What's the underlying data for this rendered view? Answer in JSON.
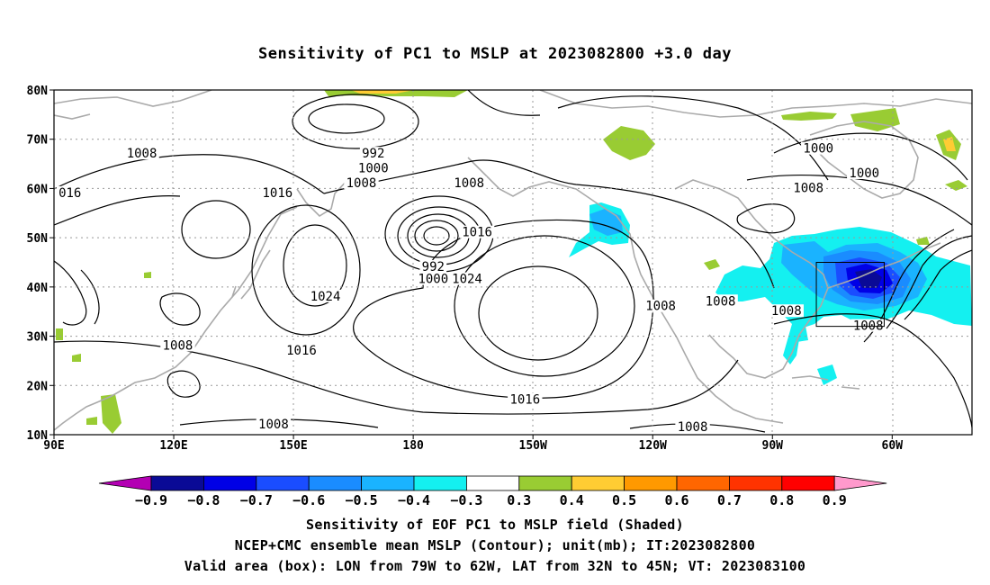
{
  "title": "Sensitivity of PC1 to MSLP at 2023082800 +3.0 day",
  "lat_labels": [
    "80N",
    "70N",
    "60N",
    "50N",
    "40N",
    "30N",
    "20N",
    "10N"
  ],
  "lon_labels": [
    "90E",
    "120E",
    "150E",
    "180",
    "150W",
    "120W",
    "90W",
    "60W"
  ],
  "contour_labels": [
    {
      "text": "1008",
      "lon": 112,
      "lat": 67
    },
    {
      "text": "992",
      "lon": 170,
      "lat": 67
    },
    {
      "text": "1000",
      "lon": 170,
      "lat": 64
    },
    {
      "text": "1008",
      "lon": 167,
      "lat": 61
    },
    {
      "text": "016",
      "lon": 94,
      "lat": 59
    },
    {
      "text": "1016",
      "lon": 146,
      "lat": 59
    },
    {
      "text": "1008",
      "lon": 194,
      "lat": 61
    },
    {
      "text": "1016",
      "lon": 196,
      "lat": 51
    },
    {
      "text": "992",
      "lon": 185,
      "lat": 44
    },
    {
      "text": "1000",
      "lon": 185,
      "lat": 41.5
    },
    {
      "text": "1024",
      "lon": 193.5,
      "lat": 41.5
    },
    {
      "text": "1024",
      "lon": 158,
      "lat": 38
    },
    {
      "text": "1008",
      "lon": 242,
      "lat": 36
    },
    {
      "text": "1008",
      "lon": 257,
      "lat": 37
    },
    {
      "text": "1008",
      "lon": 121,
      "lat": 28
    },
    {
      "text": "1016",
      "lon": 152,
      "lat": 27
    },
    {
      "text": "1016",
      "lon": 208,
      "lat": 17
    },
    {
      "text": "1008",
      "lon": 145,
      "lat": 12
    },
    {
      "text": "1008",
      "lon": 250,
      "lat": 11.5
    },
    {
      "text": "1000",
      "lon": 281.5,
      "lat": 68
    },
    {
      "text": "1000",
      "lon": 293,
      "lat": 63
    },
    {
      "text": "1008",
      "lon": 279,
      "lat": 60
    },
    {
      "text": "1008",
      "lon": 273.5,
      "lat": 35
    },
    {
      "text": "1008",
      "lon": 294,
      "lat": 32
    }
  ],
  "valid_box": {
    "lon_min": -79,
    "lon_max": -62,
    "lat_min": 32,
    "lat_max": 45
  },
  "colorbar": {
    "labels": [
      "−0.9",
      "−0.8",
      "−0.7",
      "−0.6",
      "−0.5",
      "−0.4",
      "−0.3",
      "0.3",
      "0.4",
      "0.5",
      "0.6",
      "0.7",
      "0.8",
      "0.9"
    ],
    "colors": [
      "#b300b3",
      "#0a0a96",
      "#0000e6",
      "#1a4dff",
      "#1a8cff",
      "#1ab3ff",
      "#14f0f0",
      "#ffffff",
      "#99cc33",
      "#ffcc33",
      "#ff9900",
      "#ff6600",
      "#ff3300",
      "#ff0000",
      "#ff99cc"
    ]
  },
  "caption": {
    "line1": "Sensitivity of EOF PC1 to MSLP field (Shaded)",
    "line2": "NCEP+CMC ensemble mean MSLP (Contour); unit(mb); IT:2023082800",
    "line3": "Valid area (box): LON from 79W to 62W, LAT from 32N to 45N; VT: 2023083100"
  }
}
